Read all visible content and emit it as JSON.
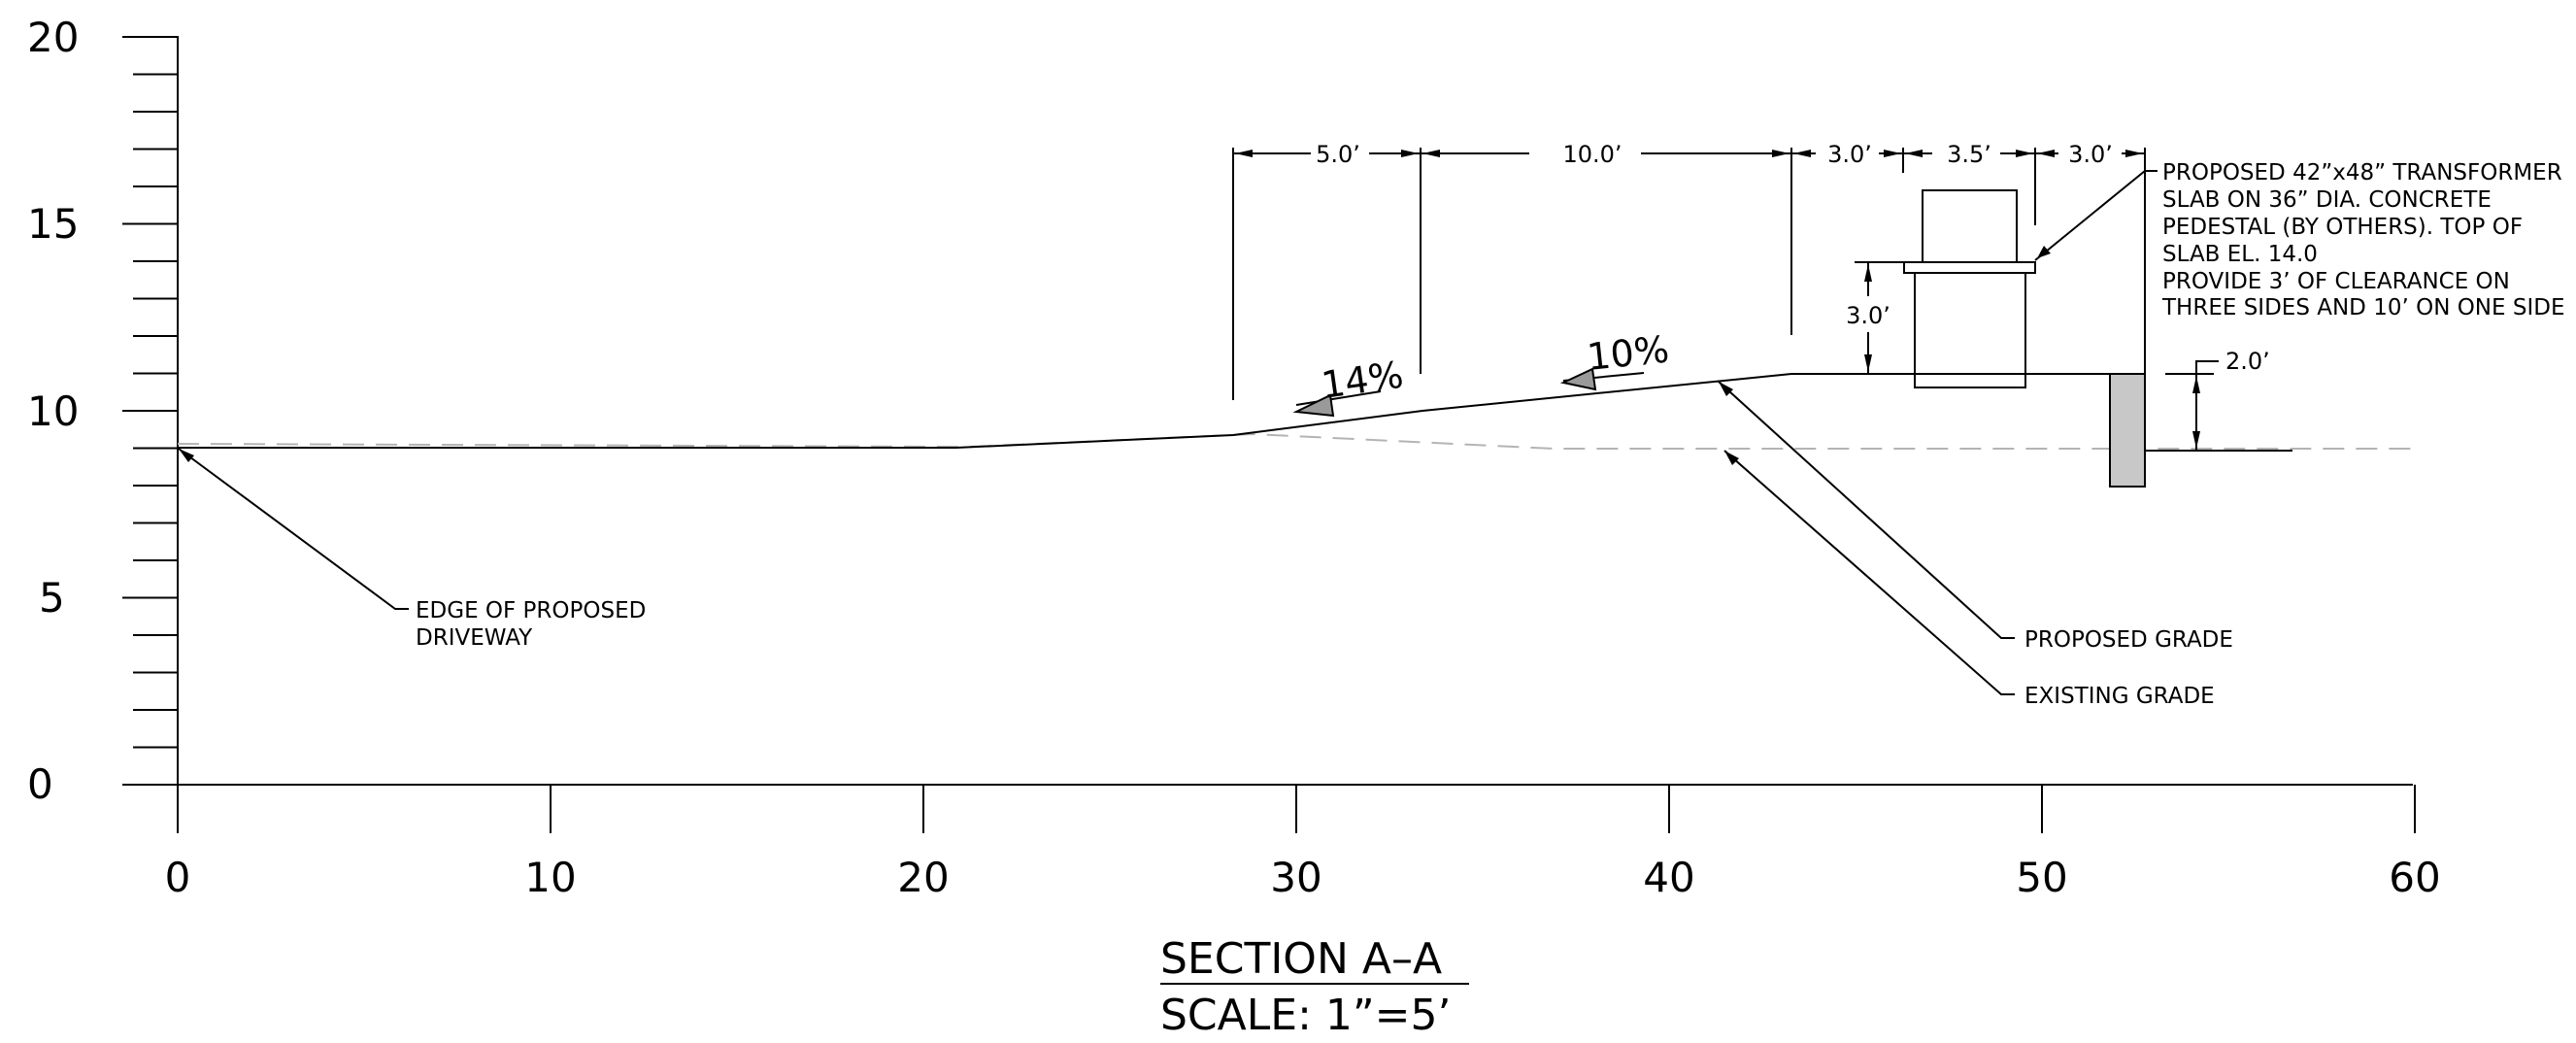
{
  "section": {
    "title": "SECTION A–A",
    "scale": "SCALE:  1”=5’"
  },
  "axes": {
    "y_ticks": [
      0,
      5,
      10,
      15,
      20
    ],
    "y_tick_labels": [
      "0",
      "5",
      "10",
      "15",
      "20"
    ],
    "x_ticks": [
      0,
      10,
      20,
      30,
      40,
      50,
      60
    ],
    "x_tick_labels": [
      "0",
      "10",
      "20",
      "30",
      "40",
      "50",
      "60"
    ]
  },
  "dimensions": {
    "d1": "5.0’",
    "d2": "10.0’",
    "d3": "3.0’",
    "d4": "3.5’",
    "d5": "3.0’",
    "pedestal_height": "3.0’",
    "wall_height": "2.0’"
  },
  "slopes": {
    "s1": "14%",
    "s2": "10%"
  },
  "notes": {
    "transformer": [
      "PROPOSED 42”x48” TRANSFORMER",
      "SLAB ON 36” DIA. CONCRETE",
      "PEDESTAL (BY OTHERS). TOP OF",
      "SLAB EL. 14.0",
      "PROVIDE 3’ OF CLEARANCE ON",
      "THREE SIDES AND 10’ ON ONE SIDE"
    ],
    "driveway": [
      "EDGE OF PROPOSED",
      "DRIVEWAY"
    ],
    "proposed_grade": "PROPOSED GRADE",
    "existing_grade": "EXISTING GRADE"
  },
  "colors": {
    "line": "#000000",
    "existing_grade": "#b4b4b4",
    "retaining_wall_fill": "#c8c8c8",
    "arrow_fill": "#9a9a9a"
  }
}
